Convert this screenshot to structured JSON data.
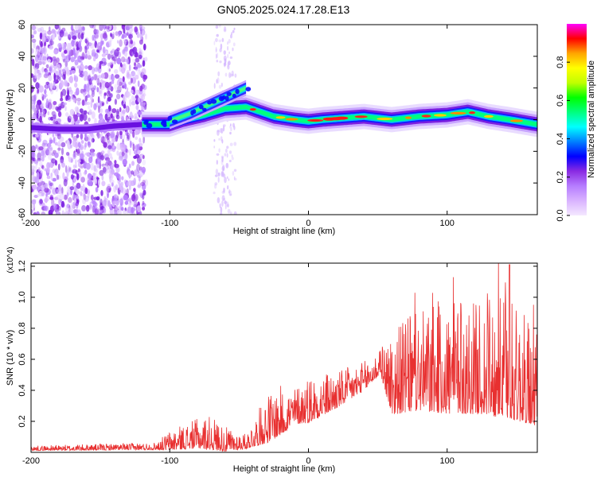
{
  "title": "GN05.2025.024.17.28.E13",
  "chart_data": [
    {
      "type": "heatmap",
      "xlabel": "Height of straight line (km)",
      "ylabel": "Frequency (Hz)",
      "xlim": [
        -200,
        165
      ],
      "ylim": [
        -60,
        60
      ],
      "xticks": [
        -200,
        -100,
        0,
        100
      ],
      "yticks": [
        -60,
        -40,
        -20,
        0,
        20,
        40,
        60
      ],
      "colorbar": {
        "label": "Normalized spectral amplitude",
        "range": [
          0,
          1
        ],
        "ticks": [
          "0.0",
          "0.2",
          "0.4",
          "0.6",
          "0.8"
        ],
        "tick_values": [
          0,
          0.2,
          0.4,
          0.6,
          0.8
        ],
        "colors": [
          "#f4e8ff",
          "#d9b3ff",
          "#b67dff",
          "#8a2be2",
          "#0000ff",
          "#0080ff",
          "#00ffff",
          "#00ff80",
          "#00ff00",
          "#c0ff00",
          "#ffff00",
          "#ffa500",
          "#ff0000",
          "#ff00ff"
        ]
      },
      "ridge": [
        {
          "x": -200,
          "y": -5
        },
        {
          "x": -180,
          "y": -6
        },
        {
          "x": -160,
          "y": -6
        },
        {
          "x": -140,
          "y": -4
        },
        {
          "x": -120,
          "y": -3
        },
        {
          "x": -100,
          "y": -3
        },
        {
          "x": -90,
          "y": 0
        },
        {
          "x": -75,
          "y": 3
        },
        {
          "x": -60,
          "y": 7
        },
        {
          "x": -45,
          "y": 8
        },
        {
          "x": -35,
          "y": 5
        },
        {
          "x": -25,
          "y": 2
        },
        {
          "x": -10,
          "y": 0
        },
        {
          "x": 0,
          "y": -1
        },
        {
          "x": 10,
          "y": 0
        },
        {
          "x": 25,
          "y": 1
        },
        {
          "x": 40,
          "y": 2
        },
        {
          "x": 60,
          "y": 0
        },
        {
          "x": 80,
          "y": 2
        },
        {
          "x": 100,
          "y": 3
        },
        {
          "x": 115,
          "y": 5
        },
        {
          "x": 130,
          "y": 2
        },
        {
          "x": 145,
          "y": 0
        },
        {
          "x": 165,
          "y": -3
        }
      ],
      "branch": [
        {
          "x": -100,
          "y": -1
        },
        {
          "x": -85,
          "y": 4
        },
        {
          "x": -70,
          "y": 10
        },
        {
          "x": -55,
          "y": 16
        },
        {
          "x": -45,
          "y": 20
        }
      ]
    },
    {
      "type": "line",
      "xlabel": "Height of straight line (km)",
      "ylabel": "SNR (10 * v/v)",
      "yscale_label": "(x10^4)",
      "xlim": [
        -200,
        165
      ],
      "ylim": [
        0,
        1.22
      ],
      "xticks": [
        -200,
        -100,
        0,
        100
      ],
      "yticks": [
        0.2,
        0.4,
        0.6,
        0.8,
        1.0,
        1.2
      ],
      "ytick_labels": [
        "0.2",
        "0.4",
        "0.6",
        "0.8",
        "1.0",
        "1.2"
      ],
      "color": "#e83030",
      "envelope": [
        {
          "x": -200,
          "base": 0.02,
          "amp": 0.02
        },
        {
          "x": -110,
          "base": 0.03,
          "amp": 0.03
        },
        {
          "x": -100,
          "base": 0.05,
          "amp": 0.08
        },
        {
          "x": -80,
          "base": 0.08,
          "amp": 0.12
        },
        {
          "x": -70,
          "base": 0.08,
          "amp": 0.14
        },
        {
          "x": -60,
          "base": 0.05,
          "amp": 0.1
        },
        {
          "x": -45,
          "base": 0.05,
          "amp": 0.06
        },
        {
          "x": -30,
          "base": 0.15,
          "amp": 0.2
        },
        {
          "x": -20,
          "base": 0.2,
          "amp": 0.2
        },
        {
          "x": -10,
          "base": 0.25,
          "amp": 0.15
        },
        {
          "x": 0,
          "base": 0.28,
          "amp": 0.2
        },
        {
          "x": 20,
          "base": 0.35,
          "amp": 0.15
        },
        {
          "x": 40,
          "base": 0.45,
          "amp": 0.12
        },
        {
          "x": 52,
          "base": 0.55,
          "amp": 0.1
        },
        {
          "x": 60,
          "base": 0.4,
          "amp": 0.35
        },
        {
          "x": 80,
          "base": 0.45,
          "amp": 0.4
        },
        {
          "x": 100,
          "base": 0.45,
          "amp": 0.45
        },
        {
          "x": 120,
          "base": 0.45,
          "amp": 0.45
        },
        {
          "x": 140,
          "base": 0.45,
          "amp": 0.5
        },
        {
          "x": 165,
          "base": 0.35,
          "amp": 0.4
        }
      ]
    }
  ]
}
